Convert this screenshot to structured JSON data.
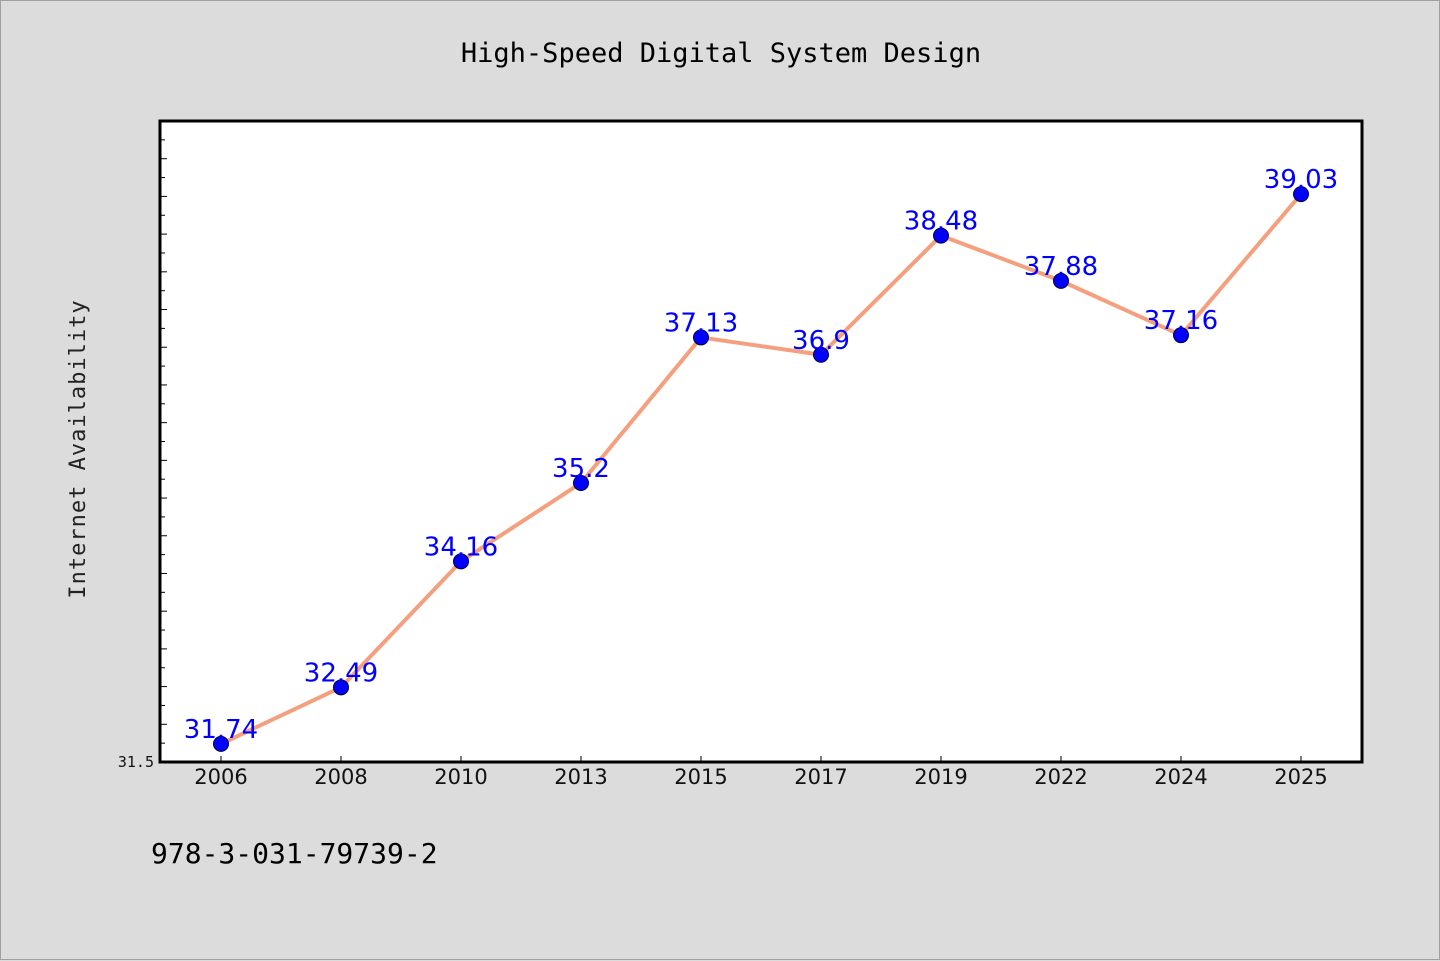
{
  "footer_text": "978-3-031-79739-2",
  "colors": {
    "background": "#dcdcdc",
    "plot_background": "#ffffff",
    "line": "#f4a07e",
    "marker": "#0000ff",
    "data_label": "#0000ff"
  },
  "chart_data": {
    "type": "line",
    "title": "High-Speed Digital System Design",
    "xlabel": "",
    "ylabel": "Internet Availability",
    "categories": [
      "2006",
      "2008",
      "2010",
      "2013",
      "2015",
      "2017",
      "2019",
      "2022",
      "2024",
      "2025"
    ],
    "series": [
      {
        "values": [
          31.74,
          32.49,
          34.16,
          35.2,
          37.13,
          36.9,
          38.48,
          37.88,
          37.16,
          39.03
        ],
        "data_labels": [
          "31.74",
          "32.49",
          "34.16",
          "35.2",
          "37.13",
          "36.9",
          "38.48",
          "37.88",
          "37.16",
          "39.03"
        ]
      }
    ],
    "ylim": [
      31.5,
      40.0
    ],
    "y_tick_labels": [
      "31.5"
    ],
    "grid": false,
    "legend": "none",
    "markers": "filled circles"
  }
}
